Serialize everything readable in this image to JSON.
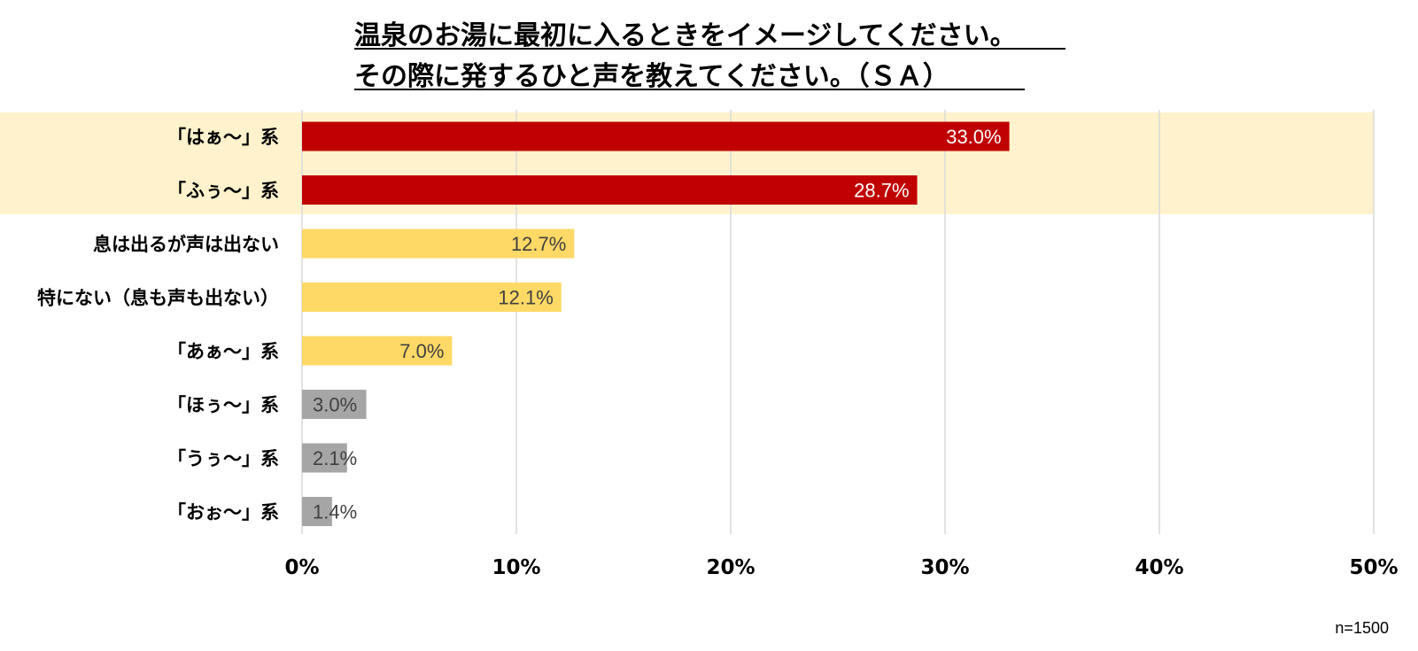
{
  "chart_data": {
    "type": "bar",
    "orientation": "horizontal",
    "title_lines": [
      "温泉のお湯に最初に入るときをイメージしてください。",
      "その際に発するひと声を教えてください。（ＳＡ）"
    ],
    "categories": [
      "「はぁ〜」系",
      "「ふぅ〜」系",
      "息は出るが声は出ない",
      "特にない（息も声も出ない）",
      "「あぁ〜」系",
      "「ほぅ〜」系",
      "「うぅ〜」系",
      "「おぉ〜」系"
    ],
    "values": [
      33.0,
      28.7,
      12.7,
      12.1,
      7.0,
      3.0,
      2.1,
      1.4
    ],
    "value_labels": [
      "33.0%",
      "28.7%",
      "12.7%",
      "12.1%",
      "7.0%",
      "3.0%",
      "2.1%",
      "1.4%"
    ],
    "bar_colors": [
      "#c00000",
      "#c00000",
      "#ffd966",
      "#ffd966",
      "#ffd966",
      "#a6a6a6",
      "#a6a6a6",
      "#a6a6a6"
    ],
    "label_colors": [
      "#ffffff",
      "#ffffff",
      "#404040",
      "#404040",
      "#404040",
      "#404040",
      "#404040",
      "#404040"
    ],
    "highlighted_categories": [
      "「はぁ〜」系",
      "「ふぅ〜」系"
    ],
    "highlight_color": "#fff2cc",
    "gridline_color": "#d9d9d9",
    "xlim": [
      0,
      50
    ],
    "xticks": [
      0,
      10,
      20,
      30,
      40,
      50
    ],
    "xtick_labels": [
      "0%",
      "10%",
      "20%",
      "30%",
      "40%",
      "50%"
    ],
    "grid": true,
    "legend": "none",
    "sample_size_label": "n=1500"
  }
}
